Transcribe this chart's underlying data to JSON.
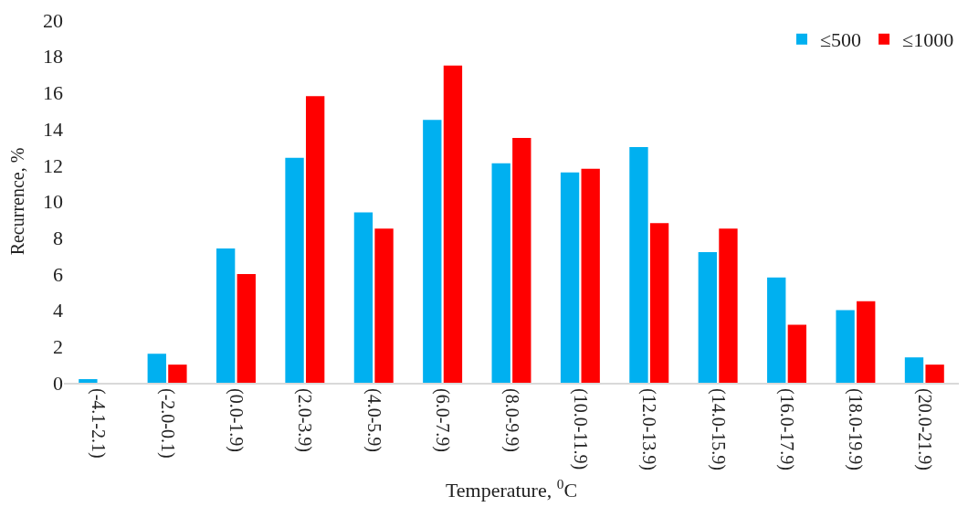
{
  "chart_data": {
    "type": "bar",
    "xlabel": "Temperature, $^{0}$C",
    "ylabel": "Recurrence, %",
    "categories": [
      "(-4.1-2.1)",
      "(-2.0-0.1)",
      "(0.0-1.9)",
      "(2.0-3.9)",
      "(4.0-5.9)",
      "(6.0-7.9)",
      "(8.0-9.9)",
      "(10.0-11.9)",
      "(12.0-13.9)",
      "(14.0-15.9)",
      "(16.0-17.9)",
      "(18.0-19.9)",
      "(20.0-21.9)"
    ],
    "series": [
      {
        "name": "≤500",
        "color": "#00b0f0",
        "values": [
          0.2,
          1.6,
          7.4,
          12.4,
          9.4,
          14.5,
          12.1,
          11.6,
          13.0,
          7.2,
          5.8,
          4.0,
          1.4
        ]
      },
      {
        "name": "≤1000",
        "color": "#ff0000",
        "values": [
          0,
          1.0,
          6.0,
          15.8,
          8.5,
          17.5,
          13.5,
          11.8,
          8.8,
          8.5,
          3.2,
          4.5,
          1.0
        ]
      }
    ],
    "ylim": [
      0,
      20
    ],
    "yticks": [
      0,
      2,
      4,
      6,
      8,
      10,
      12,
      14,
      16,
      18,
      20
    ],
    "legend": "top right"
  }
}
